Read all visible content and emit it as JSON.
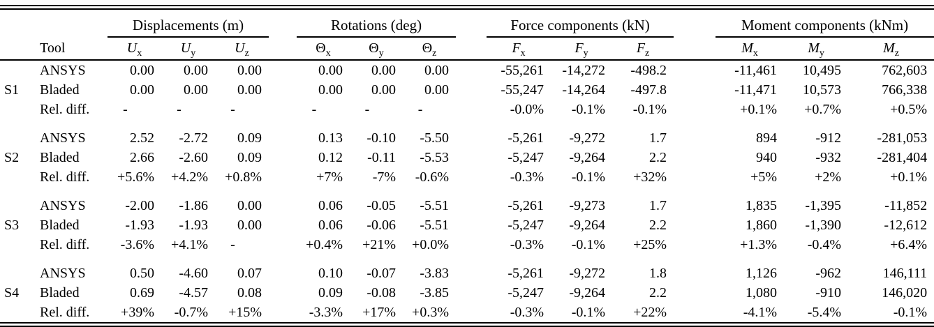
{
  "table": {
    "col_groups": [
      {
        "label": "Displacements (m)"
      },
      {
        "label": "Rotations (deg)"
      },
      {
        "label": "Force components (kN)"
      },
      {
        "label": "Moment components (kNm)"
      }
    ],
    "tool_header": "Tool",
    "sub_headers": [
      {
        "base": "U",
        "sub": "x",
        "italic": true
      },
      {
        "base": "U",
        "sub": "y",
        "italic": true
      },
      {
        "base": "U",
        "sub": "z",
        "italic": true
      },
      {
        "base": "Θ",
        "sub": "x",
        "italic": false
      },
      {
        "base": "Θ",
        "sub": "y",
        "italic": false
      },
      {
        "base": "Θ",
        "sub": "z",
        "italic": false
      },
      {
        "base": "F",
        "sub": "x",
        "italic": true
      },
      {
        "base": "F",
        "sub": "y",
        "italic": true
      },
      {
        "base": "F",
        "sub": "z",
        "italic": true
      },
      {
        "base": "M",
        "sub": "x",
        "italic": true
      },
      {
        "base": "M",
        "sub": "y",
        "italic": true
      },
      {
        "base": "M",
        "sub": "z",
        "italic": true
      }
    ],
    "sections": [
      {
        "label": "S1",
        "rows": [
          {
            "tool": "ANSYS",
            "values": [
              "0.00",
              "0.00",
              "0.00",
              "0.00",
              "0.00",
              "0.00",
              "-55,261",
              "-14,272",
              "-498.2",
              "-11,461",
              "10,495",
              "762,603"
            ]
          },
          {
            "tool": "Bladed",
            "values": [
              "0.00",
              "0.00",
              "0.00",
              "0.00",
              "0.00",
              "0.00",
              "-55,247",
              "-14,264",
              "-497.8",
              "-11,471",
              "10,573",
              "766,338"
            ]
          },
          {
            "tool": "Rel. diff.",
            "values": [
              "-",
              "-",
              "-",
              "-",
              "-",
              "-",
              "-0.0%",
              "-0.1%",
              "-0.1%",
              "+0.1%",
              "+0.7%",
              "+0.5%"
            ]
          }
        ]
      },
      {
        "label": "S2",
        "rows": [
          {
            "tool": "ANSYS",
            "values": [
              "2.52",
              "-2.72",
              "0.09",
              "0.13",
              "-0.10",
              "-5.50",
              "-5,261",
              "-9,272",
              "1.7",
              "894",
              "-912",
              "-281,053"
            ]
          },
          {
            "tool": "Bladed",
            "values": [
              "2.66",
              "-2.60",
              "0.09",
              "0.12",
              "-0.11",
              "-5.53",
              "-5,247",
              "-9,264",
              "2.2",
              "940",
              "-932",
              "-281,404"
            ]
          },
          {
            "tool": "Rel. diff.",
            "values": [
              "+5.6%",
              "+4.2%",
              "+0.8%",
              "+7%",
              "-7%",
              "-0.6%",
              "-0.3%",
              "-0.1%",
              "+32%",
              "+5%",
              "+2%",
              "+0.1%"
            ]
          }
        ]
      },
      {
        "label": "S3",
        "rows": [
          {
            "tool": "ANSYS",
            "values": [
              "-2.00",
              "-1.86",
              "0.00",
              "0.06",
              "-0.05",
              "-5.51",
              "-5,261",
              "-9,273",
              "1.7",
              "1,835",
              "-1,395",
              "-11,852"
            ]
          },
          {
            "tool": "Bladed",
            "values": [
              "-1.93",
              "-1.93",
              "0.00",
              "0.06",
              "-0.06",
              "-5.51",
              "-5,247",
              "-9,264",
              "2.2",
              "1,860",
              "-1,390",
              "-12,612"
            ]
          },
          {
            "tool": "Rel. diff.",
            "values": [
              "-3.6%",
              "+4.1%",
              "-",
              "+0.4%",
              "+21%",
              "+0.0%",
              "-0.3%",
              "-0.1%",
              "+25%",
              "+1.3%",
              "-0.4%",
              "+6.4%"
            ]
          }
        ]
      },
      {
        "label": "S4",
        "rows": [
          {
            "tool": "ANSYS",
            "values": [
              "0.50",
              "-4.60",
              "0.07",
              "0.10",
              "-0.07",
              "-3.83",
              "-5,261",
              "-9,272",
              "1.8",
              "1,126",
              "-962",
              "146,111"
            ]
          },
          {
            "tool": "Bladed",
            "values": [
              "0.69",
              "-4.57",
              "0.08",
              "0.09",
              "-0.08",
              "-3.85",
              "-5,247",
              "-9,264",
              "2.2",
              "1,080",
              "-910",
              "146,020"
            ]
          },
          {
            "tool": "Rel. diff.",
            "values": [
              "+39%",
              "-0.7%",
              "+15%",
              "-3.3%",
              "+17%",
              "+0.3%",
              "-0.3%",
              "-0.1%",
              "+22%",
              "-4.1%",
              "-5.4%",
              "-0.1%"
            ]
          }
        ]
      }
    ]
  }
}
